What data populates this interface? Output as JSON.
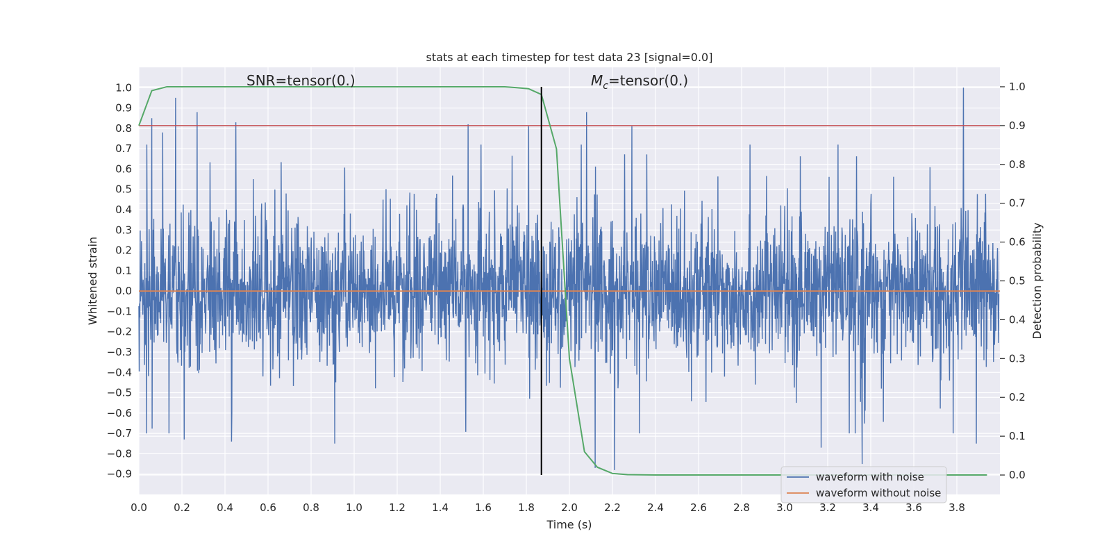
{
  "chart_data": {
    "type": "line",
    "title": "stats at each timestep for test data 23 [signal=0.0]",
    "xlabel": "Time (s)",
    "ylabel_left": "Whitened strain",
    "ylabel_right": "Detection probability",
    "xlim": [
      0.0,
      4.0
    ],
    "ylim_left": [
      -1.0,
      1.1
    ],
    "ylim_right": [
      -0.05,
      1.05
    ],
    "x_ticks": [
      0.0,
      0.2,
      0.4,
      0.6,
      0.8,
      1.0,
      1.2,
      1.4,
      1.6,
      1.8,
      2.0,
      2.2,
      2.4,
      2.6,
      2.8,
      3.0,
      3.2,
      3.4,
      3.6,
      3.8
    ],
    "x_tick_labels": [
      "0.0",
      "0.2",
      "0.4",
      "0.6",
      "0.8",
      "1.0",
      "1.2",
      "1.4",
      "1.6",
      "1.8",
      "2.0",
      "2.2",
      "2.4",
      "2.6",
      "2.8",
      "3.0",
      "3.2",
      "3.4",
      "3.6",
      "3.8"
    ],
    "y_left_ticks": [
      1.0,
      0.9,
      0.8,
      0.7,
      0.6,
      0.5,
      0.4,
      0.3,
      0.2,
      0.1,
      0.0,
      -0.1,
      -0.2,
      -0.3,
      -0.4,
      -0.5,
      -0.6,
      -0.7,
      -0.8,
      -0.9
    ],
    "y_left_tick_labels": [
      "1.0",
      "0.9",
      "0.8",
      "0.7",
      "0.6",
      "0.5",
      "0.4",
      "0.3",
      "0.2",
      "0.1",
      "0.0",
      "−0.1",
      "−0.2",
      "−0.3",
      "−0.4",
      "−0.5",
      "−0.6",
      "−0.7",
      "−0.8",
      "−0.9"
    ],
    "y_right_ticks": [
      1.0,
      0.9,
      0.8,
      0.7,
      0.6,
      0.5,
      0.4,
      0.3,
      0.2,
      0.1,
      0.0
    ],
    "y_right_tick_labels": [
      "1.0",
      "0.9",
      "0.8",
      "0.7",
      "0.6",
      "0.5",
      "0.4",
      "0.3",
      "0.2",
      "0.1",
      "0.0"
    ],
    "grid": true,
    "legend_position": "lower-right",
    "annotations": {
      "snr": "SNR=tensor(0.)",
      "mc_symbol": "M",
      "mc_subscript": "c",
      "mc_value": "=tensor(0.)"
    },
    "threshold_line": {
      "y_right": 0.9,
      "color": "#c44e52"
    },
    "vertical_line": {
      "x": 1.87,
      "color": "#000000"
    },
    "series": [
      {
        "name": "waveform with noise",
        "axis": "left",
        "color": "#4c72b0",
        "note_peaks": [
          {
            "x": 0.06,
            "y": 0.85
          },
          {
            "x": 0.11,
            "y": 0.78
          },
          {
            "x": 0.14,
            "y": -0.7
          },
          {
            "x": 0.17,
            "y": 0.95
          },
          {
            "x": 0.21,
            "y": -0.73
          },
          {
            "x": 0.27,
            "y": 0.88
          },
          {
            "x": 0.43,
            "y": -0.74
          },
          {
            "x": 0.45,
            "y": 0.83
          },
          {
            "x": 0.91,
            "y": -0.75
          },
          {
            "x": 1.53,
            "y": 0.82
          },
          {
            "x": 1.81,
            "y": 0.81
          },
          {
            "x": 2.08,
            "y": 0.88
          },
          {
            "x": 2.12,
            "y": -0.87
          },
          {
            "x": 2.21,
            "y": -0.88
          },
          {
            "x": 2.29,
            "y": 0.81
          },
          {
            "x": 3.17,
            "y": -0.77
          },
          {
            "x": 3.36,
            "y": -0.85
          },
          {
            "x": 3.83,
            "y": 1.0
          },
          {
            "x": 3.89,
            "y": -0.75
          }
        ]
      },
      {
        "name": "waveform without noise",
        "axis": "left",
        "color": "#dd8452",
        "x": [
          0.0,
          4.0
        ],
        "y": [
          0.0,
          0.0
        ]
      },
      {
        "name": "",
        "axis": "right",
        "color": "#55a868",
        "x": [
          0.0,
          0.06,
          0.13,
          0.2,
          0.4,
          0.6,
          0.8,
          1.0,
          1.2,
          1.4,
          1.6,
          1.7,
          1.75,
          1.81,
          1.87,
          1.94,
          2.0,
          2.07,
          2.13,
          2.2,
          2.27,
          2.4,
          2.6,
          3.0,
          3.5,
          3.94
        ],
        "y": [
          0.9,
          0.99,
          1.0,
          1.0,
          1.0,
          1.0,
          1.0,
          1.0,
          1.0,
          1.0,
          1.0,
          1.0,
          0.998,
          0.995,
          0.98,
          0.84,
          0.3,
          0.06,
          0.02,
          0.004,
          0.001,
          0.0,
          0.0,
          0.0,
          0.0,
          0.0
        ]
      }
    ]
  }
}
